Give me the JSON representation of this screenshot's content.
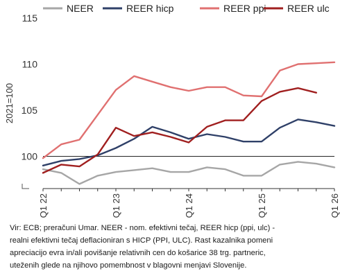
{
  "chart_data": {
    "type": "line",
    "ylabel": "2021=100",
    "ylim": [
      96.5,
      115
    ],
    "yticks": [
      100,
      105,
      110,
      115
    ],
    "x_tick_labels": [
      "Q1 22",
      "Q1 23",
      "Q1 24",
      "Q1 25",
      "Q1 26"
    ],
    "x_tick_index": [
      0,
      4,
      8,
      12,
      16
    ],
    "x_count": 17,
    "reference_line": 100,
    "legend_position": "top",
    "series": [
      {
        "name": "NEER",
        "color": "#a6a6a6",
        "values": [
          98.6,
          98.2,
          97.0,
          97.9,
          98.3,
          98.5,
          98.7,
          98.3,
          98.3,
          98.8,
          98.6,
          97.9,
          97.9,
          99.1,
          99.4,
          99.2,
          98.8
        ]
      },
      {
        "name": "REER hicp",
        "color": "#2f4068",
        "values": [
          99.0,
          99.5,
          99.7,
          100.1,
          100.9,
          101.9,
          103.2,
          102.6,
          101.9,
          102.4,
          102.1,
          101.6,
          101.6,
          103.1,
          104.0,
          103.7,
          103.3
        ]
      },
      {
        "name": "REER ppi",
        "color": "#e07070",
        "values": [
          99.8,
          101.3,
          101.8,
          104.5,
          107.2,
          108.7,
          108.1,
          107.5,
          107.1,
          107.5,
          107.5,
          106.6,
          106.5,
          109.3,
          110.0,
          110.1,
          110.2
        ]
      },
      {
        "name": "REER ulc",
        "color": "#a01f1f",
        "values": [
          98.2,
          99.1,
          98.9,
          100.2,
          103.1,
          102.2,
          102.6,
          102.1,
          101.5,
          103.2,
          103.9,
          103.9,
          106.0,
          107.0,
          107.4,
          106.9,
          null
        ]
      }
    ]
  },
  "note": {
    "line1": "Vir: ECB; preračuni Umar. NEER - nom. efektivni tečaj, REER hicp (ppi, ulc) -",
    "line2": "realni efektivni tečaj deflacioniran s HICP (PPI, ULC). Rast kazalnika pomeni",
    "line3": "apreciacijo evra in/ali povišanje relativnih cen do košarice 38 trg. partneric,",
    "line4": "uteženih glede na njihovo pomembnost v blagovni menjavi Slovenije."
  }
}
